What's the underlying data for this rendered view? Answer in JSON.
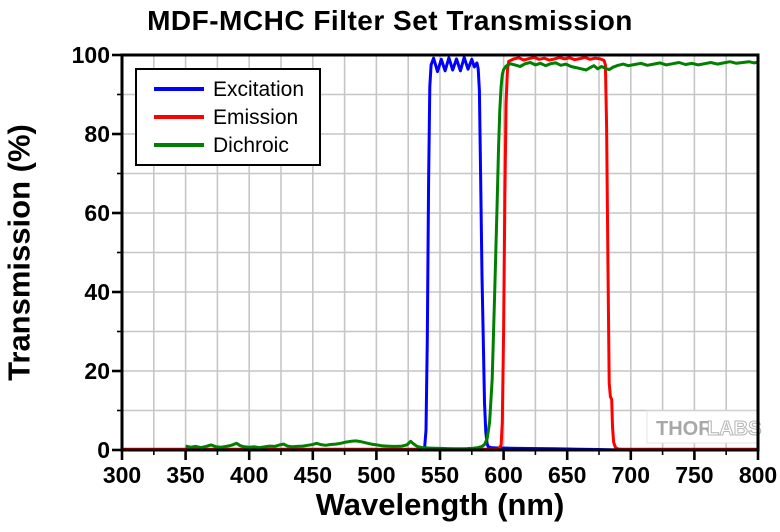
{
  "title": "MDF-MCHC Filter Set Transmission",
  "watermark": {
    "thor": "THOR",
    "labs": "LABS"
  },
  "chart_data": {
    "type": "line",
    "title": "MDF-MCHC Filter Set Transmission",
    "xlabel": "Wavelength (nm)",
    "ylabel": "Transmission (%)",
    "xlim": [
      300,
      800
    ],
    "ylim": [
      0,
      100
    ],
    "x_major_ticks": [
      300,
      350,
      400,
      450,
      500,
      550,
      600,
      650,
      700,
      750,
      800
    ],
    "y_major_ticks": [
      0,
      20,
      40,
      60,
      80,
      100
    ],
    "x_minor_step": 25,
    "y_minor_step": 10,
    "grid": true,
    "grid_color": "#c6c6c6",
    "axis_color": "#000000",
    "legend": {
      "position": "top-left"
    },
    "series": [
      {
        "name": "Excitation",
        "color": "#0000ff",
        "points": [
          [
            300,
            0
          ],
          [
            535,
            0
          ],
          [
            537,
            0.2
          ],
          [
            538,
            0.8
          ],
          [
            539,
            5
          ],
          [
            540,
            28
          ],
          [
            541,
            68
          ],
          [
            542,
            92
          ],
          [
            543,
            97.5
          ],
          [
            545,
            99.2
          ],
          [
            548,
            95.8
          ],
          [
            551,
            98.9
          ],
          [
            554,
            96.0
          ],
          [
            557,
            99.3
          ],
          [
            560,
            96.2
          ],
          [
            563,
            99.0
          ],
          [
            566,
            96.0
          ],
          [
            569,
            99.4
          ],
          [
            572,
            96.4
          ],
          [
            575,
            98.9
          ],
          [
            577,
            97.0
          ],
          [
            579,
            98.0
          ],
          [
            580,
            96.5
          ],
          [
            581,
            91
          ],
          [
            582,
            68
          ],
          [
            583,
            44
          ],
          [
            584,
            29
          ],
          [
            585,
            12
          ],
          [
            586,
            4.5
          ],
          [
            587,
            1.6
          ],
          [
            588,
            0.8
          ],
          [
            591,
            0.55
          ],
          [
            596,
            0.5
          ],
          [
            605,
            0.45
          ],
          [
            620,
            0.38
          ],
          [
            640,
            0.3
          ],
          [
            660,
            0.2
          ],
          [
            675,
            0.12
          ],
          [
            683,
            0.06
          ],
          [
            688,
            0.02
          ],
          [
            695,
            0
          ],
          [
            800,
            0
          ]
        ]
      },
      {
        "name": "Emission",
        "color": "#ff0000",
        "points": [
          [
            300,
            0.18
          ],
          [
            594,
            0.18
          ],
          [
            596,
            0.3
          ],
          [
            598,
            1.2
          ],
          [
            599,
            7
          ],
          [
            600,
            30
          ],
          [
            601,
            65
          ],
          [
            602,
            88
          ],
          [
            603,
            96
          ],
          [
            604,
            98.4
          ],
          [
            608,
            99.0
          ],
          [
            612,
            99.3
          ],
          [
            616,
            98.7
          ],
          [
            620,
            99.1
          ],
          [
            624,
            99.4
          ],
          [
            628,
            98.9
          ],
          [
            632,
            99.2
          ],
          [
            636,
            98.7
          ],
          [
            640,
            99.0
          ],
          [
            644,
            99.4
          ],
          [
            648,
            99.0
          ],
          [
            652,
            99.3
          ],
          [
            656,
            98.8
          ],
          [
            660,
            99.1
          ],
          [
            664,
            99.4
          ],
          [
            668,
            98.9
          ],
          [
            672,
            99.2
          ],
          [
            676,
            99.0
          ],
          [
            679,
            98.6
          ],
          [
            680,
            97.5
          ],
          [
            681,
            82
          ],
          [
            682,
            48
          ],
          [
            683,
            17
          ],
          [
            684,
            13.5
          ],
          [
            685,
            12.8
          ],
          [
            685.6,
            6
          ],
          [
            686.5,
            2
          ],
          [
            688,
            0.6
          ],
          [
            690,
            0.25
          ],
          [
            693,
            0.18
          ],
          [
            800,
            0.18
          ]
        ]
      },
      {
        "name": "Dichroic",
        "color": "#007f00",
        "points": [
          [
            350,
            1.0
          ],
          [
            354,
            0.7
          ],
          [
            358,
            0.9
          ],
          [
            362,
            0.6
          ],
          [
            366,
            0.9
          ],
          [
            370,
            1.3
          ],
          [
            374,
            0.8
          ],
          [
            378,
            0.7
          ],
          [
            382,
            0.9
          ],
          [
            386,
            1.2
          ],
          [
            390,
            1.7
          ],
          [
            393,
            1.1
          ],
          [
            396,
            0.8
          ],
          [
            400,
            0.7
          ],
          [
            404,
            0.8
          ],
          [
            408,
            0.6
          ],
          [
            412,
            0.8
          ],
          [
            416,
            1.0
          ],
          [
            420,
            0.9
          ],
          [
            424,
            1.3
          ],
          [
            427,
            1.5
          ],
          [
            430,
            1.0
          ],
          [
            434,
            0.8
          ],
          [
            438,
            0.9
          ],
          [
            442,
            1.0
          ],
          [
            446,
            1.2
          ],
          [
            450,
            1.4
          ],
          [
            453,
            1.7
          ],
          [
            456,
            1.4
          ],
          [
            460,
            1.2
          ],
          [
            464,
            1.4
          ],
          [
            468,
            1.5
          ],
          [
            472,
            1.7
          ],
          [
            476,
            2.0
          ],
          [
            480,
            2.2
          ],
          [
            484,
            2.3
          ],
          [
            488,
            2.1
          ],
          [
            492,
            1.8
          ],
          [
            496,
            1.5
          ],
          [
            500,
            1.3
          ],
          [
            504,
            1.1
          ],
          [
            508,
            1.0
          ],
          [
            512,
            0.9
          ],
          [
            516,
            0.9
          ],
          [
            520,
            1.0
          ],
          [
            524,
            1.3
          ],
          [
            527,
            2.2
          ],
          [
            529,
            1.6
          ],
          [
            532,
            0.9
          ],
          [
            536,
            0.6
          ],
          [
            541,
            0.5
          ],
          [
            546,
            0.45
          ],
          [
            551,
            0.4
          ],
          [
            556,
            0.35
          ],
          [
            561,
            0.3
          ],
          [
            566,
            0.3
          ],
          [
            571,
            0.35
          ],
          [
            576,
            0.45
          ],
          [
            580,
            0.6
          ],
          [
            583,
            0.9
          ],
          [
            585,
            1.4
          ],
          [
            587,
            2.8
          ],
          [
            589,
            7
          ],
          [
            591,
            18
          ],
          [
            593,
            40
          ],
          [
            595,
            63
          ],
          [
            596,
            76
          ],
          [
            597,
            86
          ],
          [
            598,
            92
          ],
          [
            599,
            95
          ],
          [
            600,
            96.3
          ],
          [
            602,
            97.2
          ],
          [
            605,
            97.8
          ],
          [
            609,
            97.5
          ],
          [
            613,
            97.1
          ],
          [
            617,
            97.8
          ],
          [
            621,
            98.1
          ],
          [
            625,
            97.5
          ],
          [
            629,
            97.9
          ],
          [
            633,
            97.3
          ],
          [
            637,
            97.8
          ],
          [
            641,
            98.0
          ],
          [
            645,
            97.4
          ],
          [
            649,
            97.7
          ],
          [
            653,
            97.1
          ],
          [
            657,
            96.8
          ],
          [
            661,
            96.5
          ],
          [
            665,
            96.2
          ],
          [
            668,
            96.8
          ],
          [
            671,
            97.3
          ],
          [
            674,
            96.5
          ],
          [
            677,
            97.1
          ],
          [
            680,
            96.6
          ],
          [
            683,
            96.3
          ],
          [
            686,
            96.9
          ],
          [
            690,
            97.4
          ],
          [
            694,
            97.7
          ],
          [
            698,
            97.3
          ],
          [
            703,
            97.6
          ],
          [
            708,
            97.9
          ],
          [
            713,
            97.4
          ],
          [
            718,
            97.7
          ],
          [
            723,
            98.0
          ],
          [
            728,
            97.5
          ],
          [
            733,
            97.8
          ],
          [
            738,
            98.1
          ],
          [
            743,
            97.6
          ],
          [
            748,
            97.9
          ],
          [
            753,
            97.5
          ],
          [
            758,
            97.8
          ],
          [
            763,
            98.1
          ],
          [
            768,
            97.7
          ],
          [
            773,
            98.0
          ],
          [
            778,
            98.3
          ],
          [
            783,
            97.9
          ],
          [
            788,
            98.1
          ],
          [
            793,
            98.3
          ],
          [
            797,
            98.0
          ],
          [
            800,
            98.2
          ]
        ]
      }
    ]
  }
}
